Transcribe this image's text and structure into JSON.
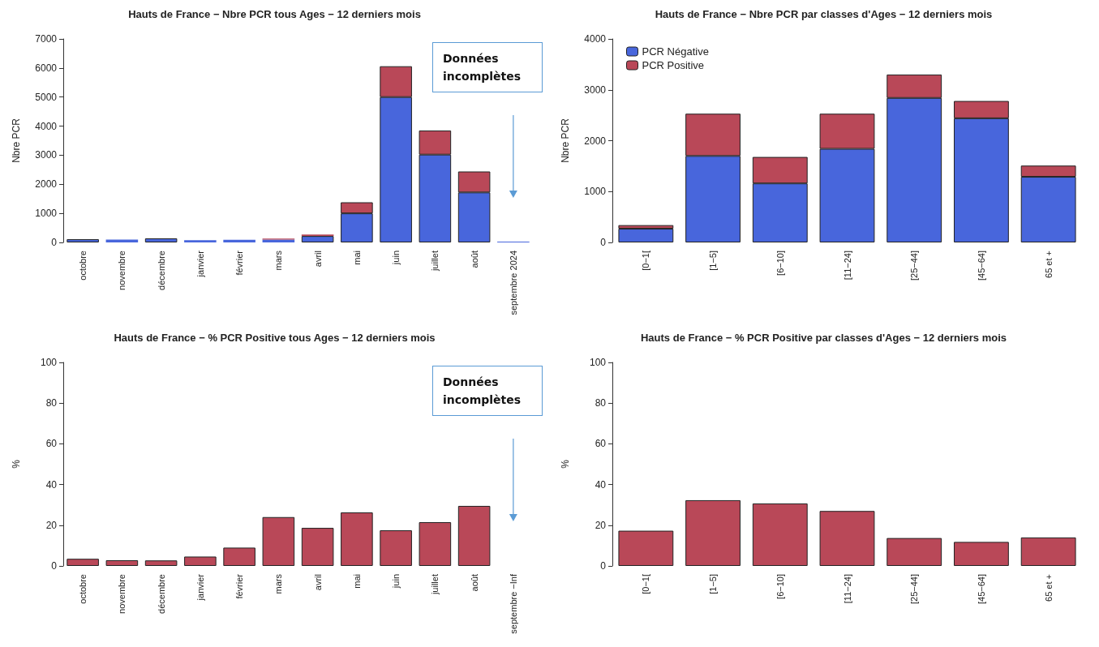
{
  "chart_data": [
    {
      "type": "bar",
      "title": "Hauts de France − Nbre PCR tous Ages − 12 derniers mois",
      "ylabel": "Nbre PCR",
      "stacked": true,
      "categories": [
        "octobre",
        "novembre",
        "décembre",
        "janvier",
        "février",
        "mars",
        "avril",
        "mai",
        "juin",
        "juillet",
        "août",
        "septembre 2024"
      ],
      "series": [
        {
          "color": "#4866dc",
          "values": [
            110,
            100,
            140,
            80,
            90,
            100,
            220,
            1000,
            5000,
            3020,
            1720,
            30
          ]
        },
        {
          "color": "#b94858",
          "values": [
            0,
            0,
            0,
            0,
            0,
            30,
            50,
            380,
            1060,
            830,
            720,
            0
          ]
        }
      ],
      "ylim": [
        0,
        7000
      ],
      "yticks": [
        0,
        1000,
        2000,
        3000,
        4000,
        5000,
        6000,
        7000
      ],
      "annotations": [
        "Données incomplètes"
      ]
    },
    {
      "type": "bar",
      "title": "Hauts de France − Nbre PCR par classes d'Ages − 12 derniers mois",
      "ylabel": "Nbre PCR",
      "stacked": true,
      "legend": "top left",
      "categories": [
        "[0−1[",
        "[1−5]",
        "[6−10]",
        "[11−24]",
        "[25−44]",
        "[45−64]",
        "65 et +"
      ],
      "series": [
        {
          "name": "PCR Négative",
          "color": "#4866dc",
          "values": [
            270,
            1700,
            1160,
            1840,
            2840,
            2440,
            1290
          ]
        },
        {
          "name": "PCR Positive",
          "color": "#b94858",
          "values": [
            70,
            830,
            520,
            690,
            460,
            340,
            220
          ]
        }
      ],
      "ylim": [
        0,
        4000
      ],
      "yticks": [
        0,
        1000,
        2000,
        3000,
        4000
      ]
    },
    {
      "type": "bar",
      "title": "Hauts de France − % PCR Positive tous Ages − 12 derniers mois",
      "ylabel": "%",
      "categories": [
        "octobre",
        "novembre",
        "décembre",
        "janvier",
        "février",
        "mars",
        "avril",
        "mai",
        "juin",
        "juillet",
        "août",
        "septembre −Inf"
      ],
      "series": [
        {
          "color": "#b94858",
          "values": [
            3.5,
            2.8,
            2.7,
            4.6,
            9,
            24,
            18.7,
            26.3,
            17.5,
            21.5,
            29.5,
            null
          ]
        }
      ],
      "ylim": [
        0,
        100
      ],
      "yticks": [
        0,
        20,
        40,
        60,
        80,
        100
      ],
      "annotations": [
        "Données incomplètes"
      ]
    },
    {
      "type": "bar",
      "title": "Hauts de France − % PCR Positive par classes d'Ages − 12 derniers mois",
      "ylabel": "%",
      "categories": [
        "[0−1[",
        "[1−5]",
        "[6−10]",
        "[11−24]",
        "[25−44]",
        "[45−64]",
        "65 et +"
      ],
      "series": [
        {
          "color": "#b94858",
          "values": [
            17.3,
            32.3,
            30.7,
            27,
            13.7,
            11.8,
            14
          ]
        }
      ],
      "ylim": [
        0,
        100
      ],
      "yticks": [
        0,
        20,
        40,
        60,
        80,
        100
      ]
    }
  ]
}
